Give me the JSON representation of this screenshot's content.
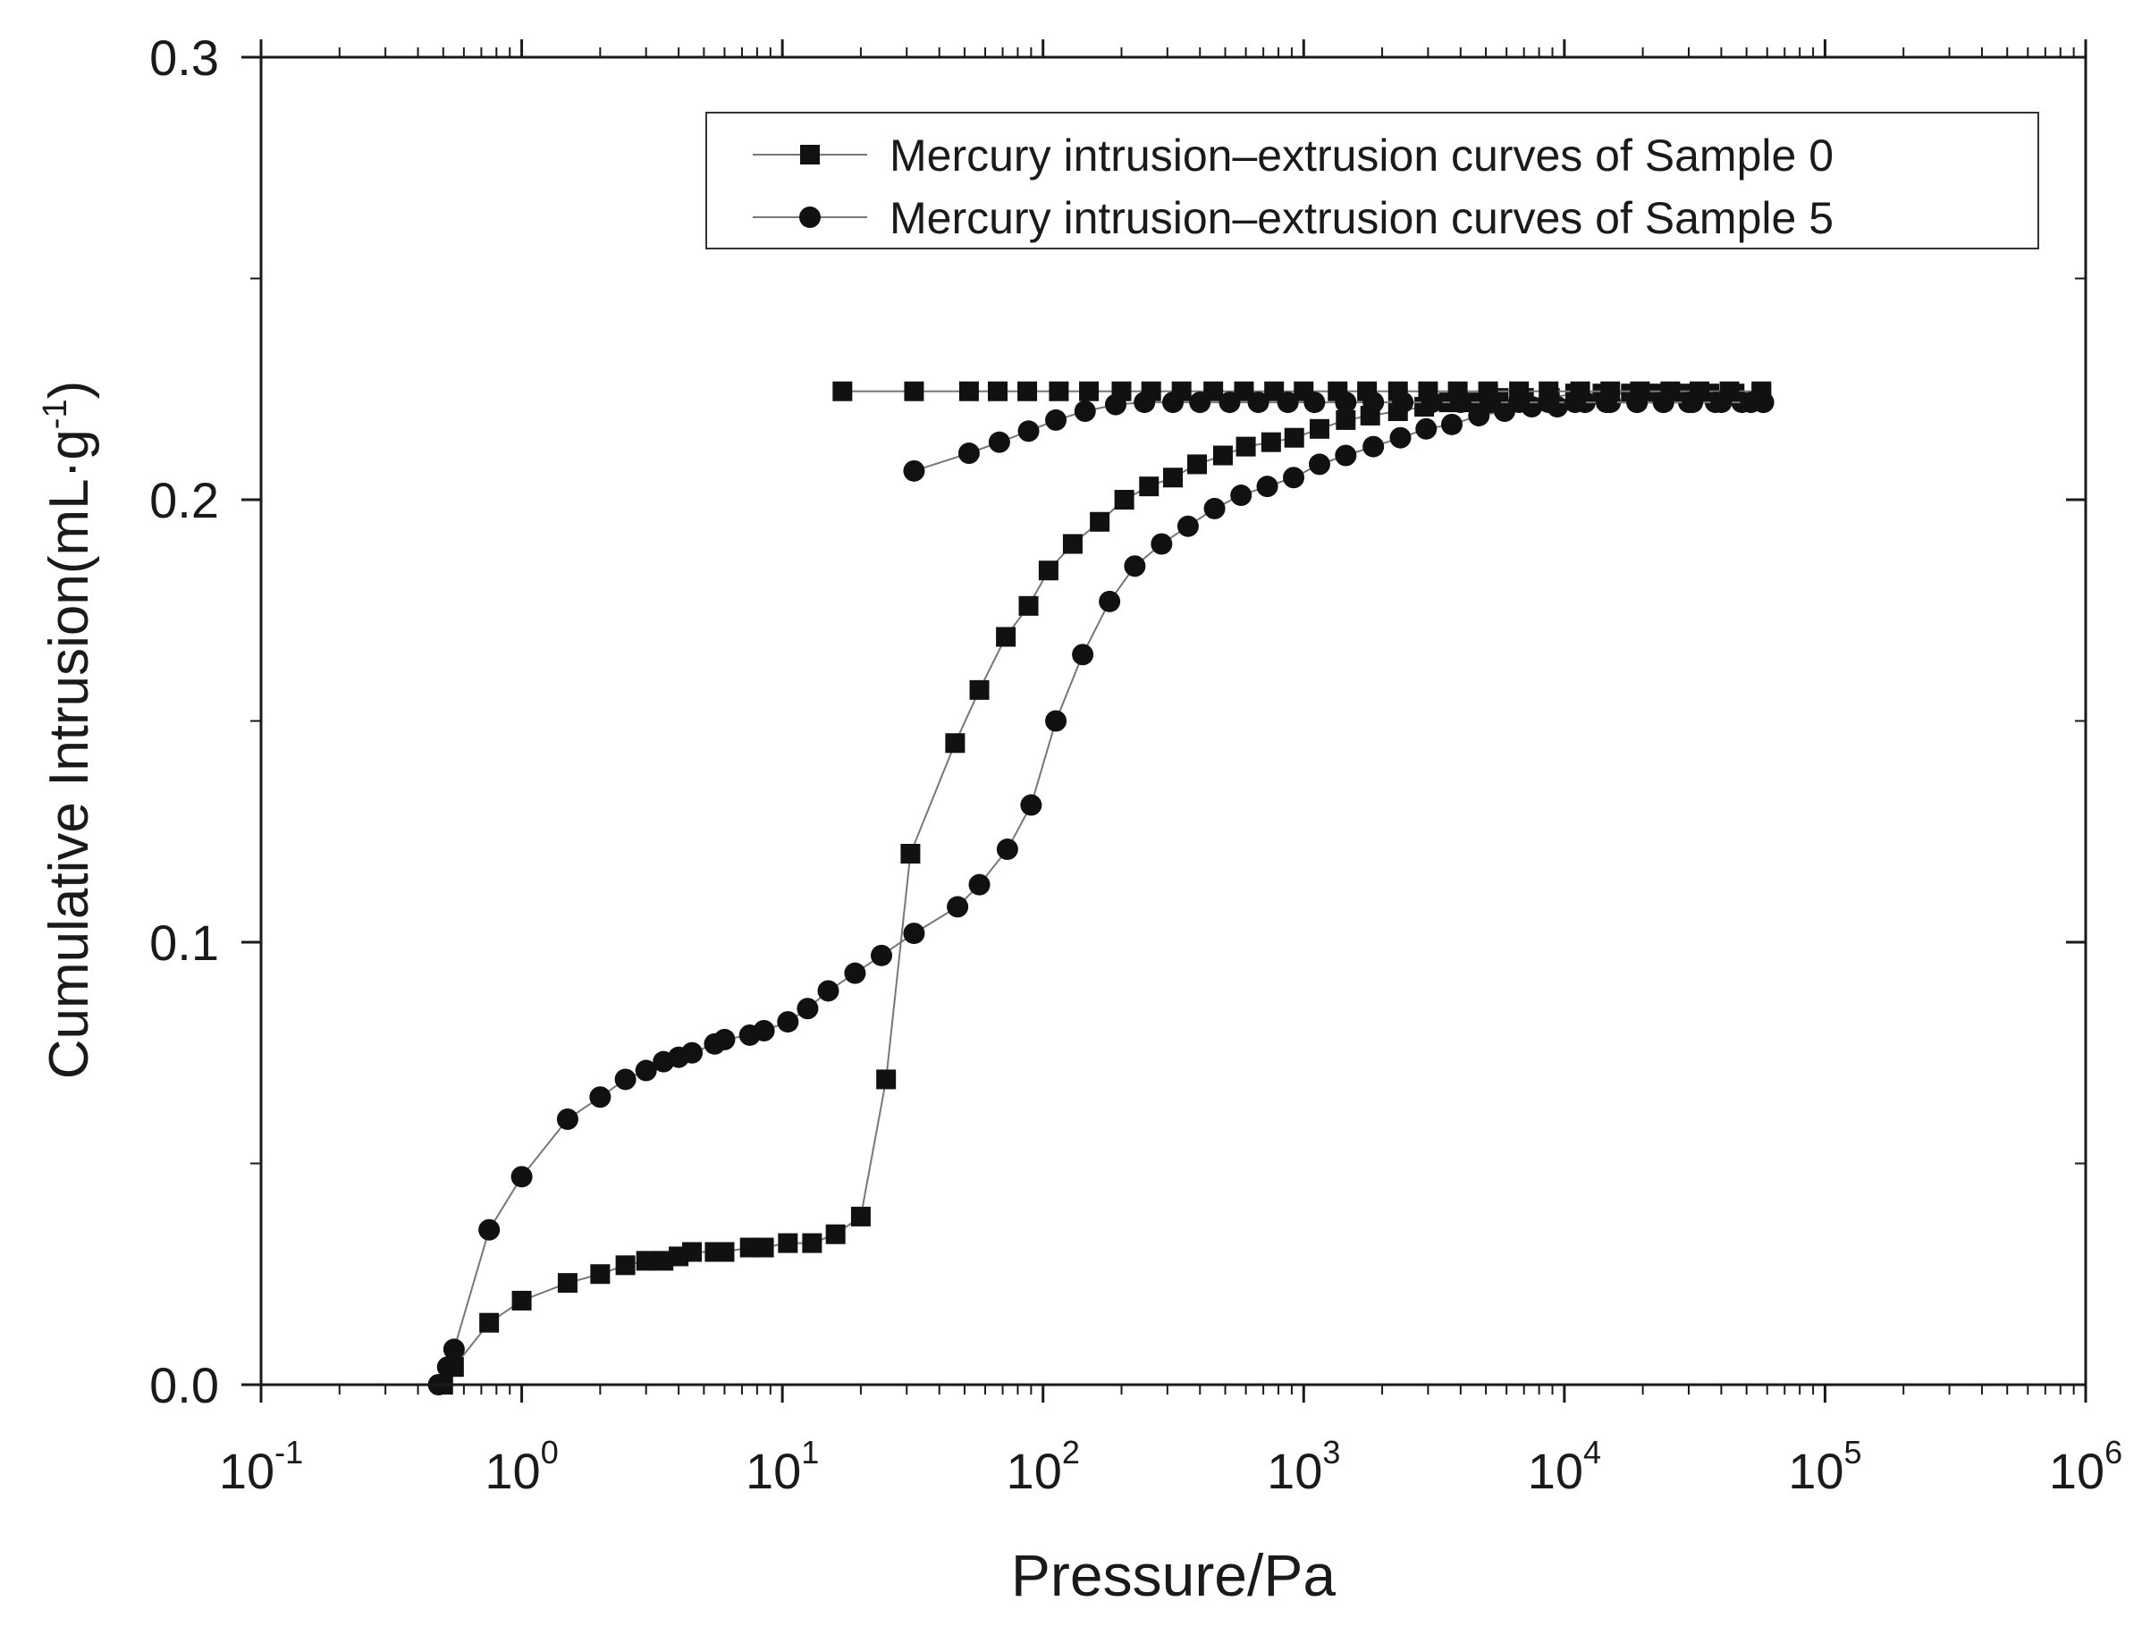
{
  "chart_data": {
    "type": "scatter",
    "title": "",
    "xlabel": "Pressure/Pa",
    "ylabel": "Cumulative Intrusion(mL·g",
    "ylabel_sup": "-1",
    "ylabel_close": ")",
    "xscale": "log",
    "xlim": [
      0.1,
      1000000
    ],
    "ylim": [
      0,
      0.3
    ],
    "x_ticks": [
      {
        "base": "10",
        "exp": "-1",
        "value": 0.1
      },
      {
        "base": "10",
        "exp": "0",
        "value": 1
      },
      {
        "base": "10",
        "exp": "1",
        "value": 10
      },
      {
        "base": "10",
        "exp": "2",
        "value": 100
      },
      {
        "base": "10",
        "exp": "3",
        "value": 1000
      },
      {
        "base": "10",
        "exp": "4",
        "value": 10000
      },
      {
        "base": "10",
        "exp": "5",
        "value": 100000
      },
      {
        "base": "10",
        "exp": "6",
        "value": 1000000
      }
    ],
    "y_ticks": [
      {
        "label": "0.0",
        "value": 0
      },
      {
        "label": "0.1",
        "value": 0.1
      },
      {
        "label": "0.2",
        "value": 0.2
      },
      {
        "label": "0.3",
        "value": 0.3
      }
    ],
    "legend_position": "top-right",
    "series": [
      {
        "name": "Mercury intrusion–extrusion curves of Sample 0",
        "marker": "square",
        "color": "#111111",
        "intrusion": {
          "x": [
            0.5,
            0.55,
            0.75,
            1.0,
            1.5,
            2.0,
            2.5,
            3.0,
            3.5,
            4.0,
            4.5,
            5.5,
            6.0,
            7.5,
            8.5,
            10.5,
            13,
            16,
            20,
            25,
            31,
            46,
            57,
            72,
            88,
            105,
            130,
            165,
            205,
            255,
            315,
            390,
            490,
            600,
            750,
            920,
            1150,
            1450,
            1800,
            2300,
            2900,
            3600,
            4500,
            5600,
            7000,
            8800,
            11000,
            14000,
            18000,
            23000,
            29000,
            36000,
            45000,
            57000
          ],
          "y": [
            0.0,
            0.004,
            0.014,
            0.019,
            0.023,
            0.025,
            0.027,
            0.028,
            0.028,
            0.029,
            0.03,
            0.03,
            0.03,
            0.031,
            0.031,
            0.032,
            0.032,
            0.034,
            0.038,
            0.069,
            0.12,
            0.145,
            0.157,
            0.169,
            0.176,
            0.184,
            0.19,
            0.195,
            0.2,
            0.203,
            0.205,
            0.208,
            0.21,
            0.212,
            0.213,
            0.214,
            0.216,
            0.218,
            0.219,
            0.22,
            0.221,
            0.222,
            0.222,
            0.223,
            0.223,
            0.223,
            0.224,
            0.224,
            0.224,
            0.224,
            0.224,
            0.224,
            0.224,
            0.224
          ]
        },
        "extrusion": {
          "x": [
            17,
            32,
            52,
            67,
            87,
            115,
            150,
            200,
            260,
            340,
            450,
            590,
            770,
            1000,
            1350,
            1750,
            2300,
            3000,
            3900,
            5100,
            6700,
            8700,
            11500,
            15000,
            19500,
            25500,
            33000,
            43000,
            57000
          ],
          "y": [
            0.2245,
            0.2245,
            0.2245,
            0.2245,
            0.2245,
            0.2245,
            0.2245,
            0.2245,
            0.2245,
            0.2245,
            0.2245,
            0.2245,
            0.2245,
            0.2245,
            0.2245,
            0.2245,
            0.2245,
            0.2245,
            0.2245,
            0.2245,
            0.2245,
            0.2245,
            0.2245,
            0.2245,
            0.2245,
            0.2245,
            0.2245,
            0.2245,
            0.2245
          ]
        }
      },
      {
        "name": "Mercury intrusion–extrusion curves of Sample 5",
        "marker": "circle",
        "color": "#111111",
        "intrusion": {
          "x": [
            0.48,
            0.52,
            0.55,
            0.75,
            1.0,
            1.5,
            2.0,
            2.5,
            3.0,
            3.5,
            4.0,
            4.5,
            5.5,
            6.0,
            7.5,
            8.5,
            10.5,
            12.5,
            15,
            19,
            24,
            32,
            47,
            57,
            73,
            90,
            112,
            142,
            180,
            225,
            285,
            360,
            455,
            575,
            725,
            915,
            1150,
            1450,
            1850,
            2350,
            2950,
            3700,
            4700,
            5900,
            7500,
            9400,
            12000,
            15000,
            19000,
            24000,
            30000,
            38000,
            48000,
            58000
          ],
          "y": [
            0.0,
            0.004,
            0.008,
            0.035,
            0.047,
            0.06,
            0.065,
            0.069,
            0.071,
            0.073,
            0.074,
            0.075,
            0.077,
            0.078,
            0.079,
            0.08,
            0.082,
            0.085,
            0.089,
            0.093,
            0.097,
            0.102,
            0.108,
            0.113,
            0.121,
            0.131,
            0.15,
            0.165,
            0.177,
            0.185,
            0.19,
            0.194,
            0.198,
            0.201,
            0.203,
            0.205,
            0.208,
            0.21,
            0.212,
            0.214,
            0.216,
            0.217,
            0.219,
            0.22,
            0.221,
            0.221,
            0.222,
            0.222,
            0.222,
            0.222,
            0.222,
            0.222,
            0.222,
            0.222
          ]
        },
        "extrusion": {
          "x": [
            32,
            52,
            68,
            88,
            112,
            145,
            190,
            245,
            315,
            400,
            520,
            670,
            870,
            1100,
            1450,
            1850,
            2400,
            3100,
            4000,
            5200,
            6700,
            8700,
            11000,
            14500,
            19000,
            24000,
            31000,
            40000,
            52000,
            58000
          ],
          "y": [
            0.2065,
            0.2105,
            0.213,
            0.2155,
            0.218,
            0.22,
            0.2215,
            0.222,
            0.222,
            0.222,
            0.222,
            0.222,
            0.222,
            0.222,
            0.222,
            0.222,
            0.222,
            0.222,
            0.222,
            0.222,
            0.222,
            0.222,
            0.222,
            0.222,
            0.222,
            0.222,
            0.222,
            0.222,
            0.222,
            0.222
          ]
        }
      }
    ]
  }
}
